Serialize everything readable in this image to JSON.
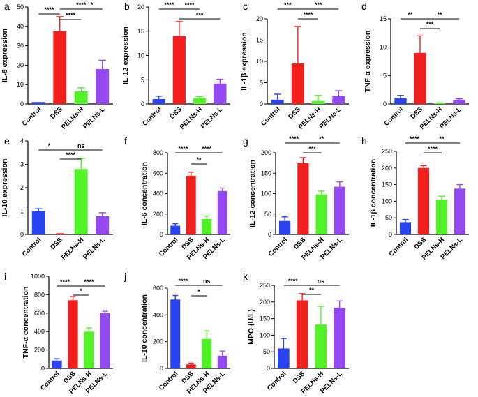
{
  "figure": {
    "colors": {
      "Control": "#2a43f2",
      "DSS": "#f21f1f",
      "PELNs-H": "#52f228",
      "PELNs-L": "#9448f0"
    },
    "chart_data": [
      {
        "type": "bar",
        "letter": "a",
        "ylabel": "IL-6 expression",
        "categories": [
          "Control",
          "DSS",
          "PELNs-H",
          "PELNs-L"
        ],
        "values": [
          1,
          37.5,
          6.5,
          18
        ],
        "errors": [
          0,
          7.5,
          1.8,
          4.5
        ],
        "ylim": [
          0,
          50
        ],
        "yticks": [
          "0",
          "10",
          "20",
          "30",
          "40",
          "50"
        ],
        "significance": [
          {
            "from": 1,
            "to": 3,
            "label": "****"
          },
          {
            "from": 0,
            "to": 1,
            "label": "****"
          },
          {
            "from": 1,
            "to": 2,
            "label": "****"
          },
          {
            "from": 2,
            "to": 3,
            "label": "*"
          }
        ]
      },
      {
        "type": "bar",
        "letter": "b",
        "ylabel": "IL-12 expression",
        "categories": [
          "Control",
          "DSS",
          "PELNs-H",
          "PELNs-L"
        ],
        "values": [
          1,
          14,
          1.2,
          4.2
        ],
        "errors": [
          0.6,
          3,
          0.3,
          0.9
        ],
        "ylim": [
          0,
          20
        ],
        "yticks": [
          "0",
          "5",
          "10",
          "15",
          "20"
        ],
        "significance": [
          {
            "from": 0,
            "to": 1,
            "label": "****"
          },
          {
            "from": 1,
            "to": 3,
            "label": "***"
          },
          {
            "from": 1,
            "to": 2,
            "label": "****"
          }
        ]
      },
      {
        "type": "bar",
        "letter": "c",
        "ylabel": "IL-1β expression",
        "categories": [
          "Control",
          "DSS",
          "PELNs-H",
          "PELNs-L"
        ],
        "values": [
          1,
          9.5,
          0.7,
          1.8
        ],
        "errors": [
          1.3,
          8.7,
          1.3,
          1.3
        ],
        "ylim": [
          0,
          20
        ],
        "yticks": [
          "0",
          "5",
          "10",
          "15",
          "20"
        ],
        "significance": [
          {
            "from": 0,
            "to": 1,
            "label": "***"
          },
          {
            "from": 1,
            "to": 3,
            "label": "***"
          },
          {
            "from": 1,
            "to": 2,
            "label": "****"
          }
        ]
      },
      {
        "type": "bar",
        "letter": "d",
        "ylabel": "TNF-α expression",
        "categories": [
          "Control",
          "DSS",
          "PELNs-H",
          "PELNs-L"
        ],
        "values": [
          1,
          9,
          0.1,
          0.7
        ],
        "errors": [
          0.5,
          3,
          0.1,
          0.2
        ],
        "ylim": [
          0,
          15
        ],
        "yticks": [
          "0",
          "5",
          "10",
          "15"
        ],
        "significance": [
          {
            "from": 0,
            "to": 1,
            "label": "**"
          },
          {
            "from": 1,
            "to": 3,
            "label": "**"
          },
          {
            "from": 1,
            "to": 2,
            "label": "***"
          }
        ]
      },
      {
        "type": "bar",
        "letter": "e",
        "ylabel": "IL-10 expression",
        "categories": [
          "Control",
          "DSS",
          "PELNs-H",
          "PELNs-L"
        ],
        "values": [
          1,
          0.02,
          2.8,
          0.78
        ],
        "errors": [
          0.1,
          0.01,
          0.45,
          0.15
        ],
        "ylim": [
          0,
          4
        ],
        "yticks": [
          "0",
          "1",
          "2",
          "3",
          "4"
        ],
        "significance": [
          {
            "from": 0,
            "to": 1,
            "label": "*"
          },
          {
            "from": 1,
            "to": 3,
            "label": "ns"
          },
          {
            "from": 1,
            "to": 2,
            "label": "****"
          }
        ]
      },
      {
        "type": "bar",
        "letter": "f",
        "ylabel": "IL-6 concentration",
        "categories": [
          "Control",
          "DSS",
          "PELNs-H",
          "PELNs-L"
        ],
        "values": [
          85,
          575,
          150,
          425
        ],
        "errors": [
          20,
          35,
          30,
          30
        ],
        "ylim": [
          0,
          800
        ],
        "yticks": [
          "0",
          "200",
          "400",
          "600",
          "800"
        ],
        "significance": [
          {
            "from": 0,
            "to": 1,
            "label": "****"
          },
          {
            "from": 1,
            "to": 3,
            "label": "****"
          },
          {
            "from": 1,
            "to": 2,
            "label": "**"
          }
        ]
      },
      {
        "type": "bar",
        "letter": "g",
        "ylabel": "IL-12 concentration",
        "categories": [
          "Control",
          "DSS",
          "PELNs-H",
          "PELNs-L"
        ],
        "values": [
          33,
          175,
          98,
          117
        ],
        "errors": [
          10,
          13,
          8,
          12
        ],
        "ylim": [
          0,
          200
        ],
        "yticks": [
          "0",
          "50",
          "100",
          "150",
          "200"
        ],
        "significance": [
          {
            "from": 0,
            "to": 1,
            "label": "****"
          },
          {
            "from": 1,
            "to": 3,
            "label": "**"
          },
          {
            "from": 1,
            "to": 2,
            "label": "***"
          }
        ]
      },
      {
        "type": "bar",
        "letter": "h",
        "ylabel": "IL-1β concentration",
        "categories": [
          "Control",
          "DSS",
          "PELNs-H",
          "PELNs-L"
        ],
        "values": [
          37,
          200,
          105,
          138
        ],
        "errors": [
          8,
          7,
          10,
          12
        ],
        "ylim": [
          0,
          250
        ],
        "yticks": [
          "0",
          "50",
          "100",
          "150",
          "200",
          "250"
        ],
        "significance": [
          {
            "from": 0,
            "to": 1,
            "label": "****"
          },
          {
            "from": 1,
            "to": 3,
            "label": "**"
          },
          {
            "from": 1,
            "to": 2,
            "label": "****"
          }
        ]
      },
      {
        "type": "bar",
        "letter": "i",
        "ylabel": "TNF-α concentration",
        "categories": [
          "Control",
          "DSS",
          "PELNs-H",
          "PELNs-L"
        ],
        "values": [
          85,
          740,
          400,
          600
        ],
        "errors": [
          20,
          40,
          40,
          20
        ],
        "ylim": [
          0,
          1000
        ],
        "yticks": [
          "0",
          "200",
          "400",
          "600",
          "800",
          "1000"
        ],
        "significance": [
          {
            "from": 0,
            "to": 1,
            "label": "****"
          },
          {
            "from": 1,
            "to": 3,
            "label": "****"
          },
          {
            "from": 1,
            "to": 2,
            "label": "*"
          }
        ]
      },
      {
        "type": "bar",
        "letter": "j",
        "ylabel": "IL-10 concentration",
        "categories": [
          "Control",
          "DSS",
          "PELNs-H",
          "PELNs-L"
        ],
        "values": [
          515,
          30,
          220,
          95
        ],
        "errors": [
          30,
          10,
          60,
          35
        ],
        "ylim": [
          0,
          600
        ],
        "yticks": [
          "0",
          "200",
          "400",
          "600"
        ],
        "significance": [
          {
            "from": 0,
            "to": 1,
            "label": "****"
          },
          {
            "from": 1,
            "to": 3,
            "label": "ns"
          },
          {
            "from": 1,
            "to": 2,
            "label": "*"
          }
        ]
      },
      {
        "type": "bar",
        "letter": "k",
        "ylabel": "MPO (U/L)",
        "categories": [
          "Control",
          "DSS",
          "PELNs-H",
          "PELNs-L"
        ],
        "values": [
          60,
          205,
          132,
          183
        ],
        "errors": [
          30,
          20,
          55,
          20
        ],
        "ylim": [
          0,
          250
        ],
        "yticks": [
          "0",
          "50",
          "100",
          "150",
          "200",
          "250"
        ],
        "significance": [
          {
            "from": 0,
            "to": 1,
            "label": "****"
          },
          {
            "from": 1,
            "to": 3,
            "label": "ns"
          },
          {
            "from": 1,
            "to": 2,
            "label": "**"
          }
        ]
      }
    ]
  }
}
